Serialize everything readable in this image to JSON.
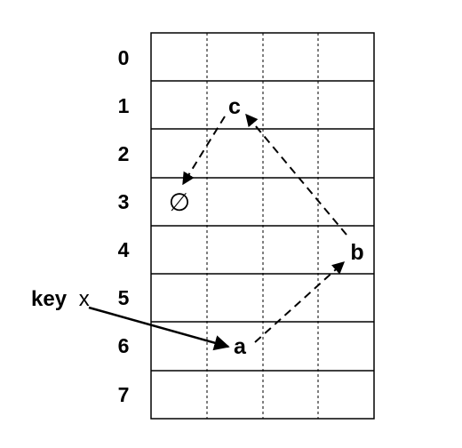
{
  "diagram": {
    "row_labels": [
      "0",
      "1",
      "2",
      "3",
      "4",
      "5",
      "6",
      "7"
    ],
    "nodes": [
      {
        "id": "a",
        "label": "a",
        "row": 6
      },
      {
        "id": "b",
        "label": "b",
        "row": 4
      },
      {
        "id": "c",
        "label": "c",
        "row": 1
      }
    ],
    "null_symbol": "∅",
    "null_row": 3,
    "key": {
      "word": "key",
      "variable": "x",
      "points_to_row": 6
    },
    "chain": [
      "a",
      "b",
      "c",
      "null"
    ],
    "colors": {
      "line": "#000000",
      "background": "#ffffff"
    }
  }
}
